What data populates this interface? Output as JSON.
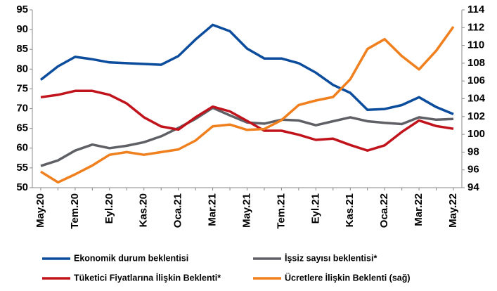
{
  "chart_data": {
    "type": "line",
    "categories": [
      "May.20",
      null,
      "Tem.20",
      null,
      "Eyl.20",
      null,
      "Kas.20",
      null,
      "Oca.21",
      null,
      "Mar.21",
      null,
      "May.21",
      null,
      "Tem.21",
      null,
      "Eyl.21",
      null,
      "Kas.21",
      null,
      "Oca.22",
      null,
      "Mar.22",
      null,
      "May.22"
    ],
    "ylim": [
      50,
      95
    ],
    "yticks": [
      50,
      55,
      60,
      65,
      70,
      75,
      80,
      85,
      90,
      95
    ],
    "y2lim": [
      94,
      114
    ],
    "y2ticks": [
      94,
      96,
      98,
      100,
      102,
      104,
      106,
      108,
      110,
      112,
      114
    ],
    "series": [
      {
        "name": "Ekonomik durum beklentisi",
        "color": "#0b4c9c",
        "values": [
          77.3,
          80.7,
          83.1,
          82.5,
          81.7,
          81.5,
          81.3,
          81.1,
          83.3,
          87.5,
          91.2,
          89.6,
          85.2,
          82.7,
          82.7,
          81.5,
          79.1,
          76.0,
          74.0,
          69.7,
          69.9,
          70.9,
          72.9,
          70.4,
          68.6
        ]
      },
      {
        "name": "İşsiz sayısı beklentisi*",
        "color": "#5f6066",
        "values": [
          55.5,
          56.9,
          59.4,
          60.9,
          60.0,
          60.6,
          61.5,
          63.0,
          65.1,
          67.4,
          70.2,
          68.3,
          66.5,
          66.2,
          67.2,
          67.0,
          65.8,
          66.8,
          67.8,
          66.8,
          66.4,
          66.1,
          67.8,
          67.2,
          67.4
        ]
      },
      {
        "name": "Tüketici Fiyatlarına İlişkin Beklenti*",
        "color": "#c0131c",
        "values": [
          72.9,
          73.5,
          74.5,
          74.5,
          73.5,
          71.3,
          67.8,
          65.5,
          64.7,
          67.8,
          70.5,
          69.3,
          66.9,
          64.4,
          64.4,
          63.4,
          62.1,
          62.4,
          60.8,
          59.4,
          60.7,
          64.1,
          67.0,
          65.6,
          64.9
        ]
      },
      {
        "name": "Ücretlere İlişkin Beklenti (sağ)",
        "color": "#f07f1e",
        "axis": "y2",
        "values": [
          95.8,
          94.6,
          95.5,
          96.5,
          97.7,
          98.0,
          97.7,
          98.0,
          98.3,
          99.3,
          100.9,
          101.1,
          100.5,
          100.6,
          101.6,
          103.3,
          103.8,
          104.2,
          106.2,
          109.6,
          110.7,
          108.8,
          107.3,
          109.4,
          112.1
        ]
      }
    ]
  }
}
